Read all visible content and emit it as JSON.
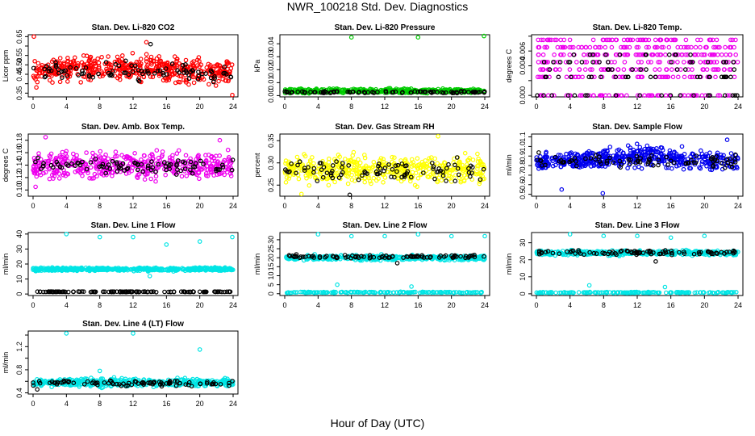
{
  "figure": {
    "title": "NWR_100218 Std. Dev. Diagnostics",
    "xlabel": "Hour of Day (UTC)"
  },
  "chart_data": [
    {
      "type": "scatter",
      "title": "Stan. Dev. Li-820 CO2",
      "ylabel": "Licor ppm",
      "xlim": [
        0,
        24
      ],
      "ylim": [
        0.33,
        0.66
      ],
      "xticks": [
        0,
        4,
        8,
        12,
        16,
        20,
        24
      ],
      "yticks": [
        0.35,
        0.4,
        0.45,
        0.5,
        0.55,
        0.6,
        0.65
      ],
      "ytick_labels": [
        "0.35",
        "",
        "0.45",
        "0.50",
        "0.55",
        "",
        "0.65"
      ],
      "grid": false,
      "series": [
        {
          "color": "#ff0000",
          "band": [
            [
              0,
              0.38,
              0.56
            ],
            [
              12,
              0.4,
              0.58
            ],
            [
              24,
              0.36,
              0.55
            ]
          ],
          "count": 480,
          "outliers": [
            [
              0.1,
              0.65
            ],
            [
              0.4,
              0.38
            ],
            [
              13.6,
              0.62
            ],
            [
              23.9,
              0.34
            ]
          ]
        },
        {
          "color": "#000000",
          "band": [
            [
              0,
              0.4,
              0.54
            ],
            [
              24,
              0.39,
              0.52
            ]
          ],
          "count": 90,
          "outliers": [
            [
              14.1,
              0.61
            ]
          ]
        }
      ]
    },
    {
      "type": "scatter",
      "title": "Stan. Dev. Li-820 Pressure",
      "ylabel": "kPa",
      "xlim": [
        0,
        24
      ],
      "ylim": [
        -0.001,
        0.047
      ],
      "xticks": [
        0,
        4,
        8,
        12,
        16,
        20,
        24
      ],
      "yticks": [
        0.0,
        0.01,
        0.02,
        0.03,
        0.04
      ],
      "ytick_labels": [
        "0.00",
        "0.01",
        "0.02",
        "0.03",
        "0.04"
      ],
      "grid": false,
      "series": [
        {
          "color": "#00cc00",
          "band": [
            [
              0,
              0.001,
              0.006
            ],
            [
              24,
              0.001,
              0.006
            ]
          ],
          "count": 450,
          "outliers": [
            [
              8.0,
              0.045
            ],
            [
              16.0,
              0.045
            ],
            [
              23.9,
              0.046
            ]
          ]
        },
        {
          "color": "#000000",
          "band": [
            [
              0,
              0.0015,
              0.004
            ],
            [
              24,
              0.0015,
              0.004
            ]
          ],
          "count": 90,
          "outliers": []
        }
      ]
    },
    {
      "type": "scatter",
      "title": "Stan. Dev. Li-820 Temp.",
      "ylabel": "degrees C",
      "xlim": [
        0,
        24
      ],
      "ylim": [
        -0.0002,
        0.0082
      ],
      "xticks": [
        0,
        4,
        8,
        12,
        16,
        20,
        24
      ],
      "yticks": [
        0.0,
        0.002,
        0.004,
        0.006,
        0.008
      ],
      "ytick_labels": [
        "0.000",
        "",
        "0.004",
        "0.006",
        ""
      ],
      "grid": false,
      "series": [
        {
          "color": "#ee00ee",
          "levels": [
            0.0,
            0.0025,
            0.0035,
            0.0045,
            0.0055,
            0.0065,
            0.0075
          ],
          "count": 420,
          "outliers": []
        },
        {
          "color": "#000000",
          "levels": [
            0.0,
            0.0025,
            0.0035,
            0.0045,
            0.0055
          ],
          "count": 80,
          "outliers": []
        }
      ]
    },
    {
      "type": "scatter",
      "title": "Stan. Dev. Amb. Box Temp.",
      "ylabel": "degrees C",
      "xlim": [
        0,
        24
      ],
      "ylim": [
        0.09,
        0.19
      ],
      "xticks": [
        0,
        4,
        8,
        12,
        16,
        20,
        24
      ],
      "yticks": [
        0.1,
        0.12,
        0.14,
        0.16,
        0.18
      ],
      "ytick_labels": [
        "0.10",
        "0.12",
        "0.14",
        "0.16",
        "0.18"
      ],
      "grid": false,
      "series": [
        {
          "color": "#ee00ee",
          "band": [
            [
              0,
              0.11,
              0.17
            ],
            [
              24,
              0.11,
              0.17
            ]
          ],
          "count": 460,
          "outliers": [
            [
              0.3,
              0.105
            ],
            [
              1.5,
              0.185
            ],
            [
              22.4,
              0.18
            ]
          ]
        },
        {
          "color": "#000000",
          "band": [
            [
              0,
              0.12,
              0.155
            ],
            [
              24,
              0.12,
              0.155
            ]
          ],
          "count": 90,
          "outliers": []
        }
      ]
    },
    {
      "type": "scatter",
      "title": "Stan. Dev. Gas Stream RH",
      "ylabel": "percent",
      "xlim": [
        0,
        24
      ],
      "ylim": [
        0.225,
        0.365
      ],
      "xticks": [
        0,
        4,
        8,
        12,
        16,
        20,
        24
      ],
      "yticks": [
        0.25,
        0.3,
        0.35
      ],
      "ytick_labels": [
        "0.25",
        "0.30",
        "0.35"
      ],
      "grid": false,
      "series": [
        {
          "color": "#ffff00",
          "band": [
            [
              0,
              0.24,
              0.33
            ],
            [
              24,
              0.24,
              0.33
            ]
          ],
          "count": 460,
          "outliers": [
            [
              18.4,
              0.36
            ],
            [
              2.0,
              0.23
            ]
          ]
        },
        {
          "color": "#000000",
          "band": [
            [
              0,
              0.245,
              0.315
            ],
            [
              24,
              0.245,
              0.32
            ]
          ],
          "count": 90,
          "outliers": [
            [
              7.8,
              0.228
            ]
          ]
        }
      ]
    },
    {
      "type": "scatter",
      "title": "Stan. Dev. Sample Flow",
      "ylabel": "ml/min",
      "xlim": [
        0,
        24
      ],
      "ylim": [
        0.48,
        1.13
      ],
      "xticks": [
        0,
        4,
        8,
        12,
        16,
        20,
        24
      ],
      "yticks": [
        0.5,
        0.6,
        0.7,
        0.8,
        0.9,
        1.0,
        1.1
      ],
      "ytick_labels": [
        "0.5",
        "0.6",
        "0.7",
        "0.8",
        "0.9",
        "1.0",
        "1.1"
      ],
      "grid": false,
      "series": [
        {
          "color": "#0000ee",
          "band": [
            [
              0,
              0.7,
              0.95
            ],
            [
              12,
              0.75,
              1.05
            ],
            [
              24,
              0.7,
              0.98
            ]
          ],
          "count": 520,
          "outliers": [
            [
              3.0,
              0.55
            ],
            [
              7.9,
              0.51
            ],
            [
              22.7,
              1.07
            ]
          ]
        },
        {
          "color": "#000000",
          "band": [
            [
              0,
              0.75,
              0.95
            ],
            [
              24,
              0.75,
              0.95
            ]
          ],
          "count": 80,
          "outliers": []
        }
      ]
    },
    {
      "type": "scatter",
      "title": "Stan. Dev. Line 1 Flow",
      "ylabel": "ml/min",
      "xlim": [
        0,
        24
      ],
      "ylim": [
        -1,
        41
      ],
      "xticks": [
        0,
        4,
        8,
        12,
        16,
        20,
        24
      ],
      "yticks": [
        0,
        10,
        20,
        30,
        40
      ],
      "ytick_labels": [
        "0",
        "10",
        "20",
        "30",
        "40"
      ],
      "grid": false,
      "series": [
        {
          "color": "#00e5e5",
          "band": [
            [
              0,
              15,
              18
            ],
            [
              24,
              15,
              18
            ]
          ],
          "count": 480,
          "outliers": [
            [
              4.0,
              40
            ],
            [
              8.0,
              38
            ],
            [
              12.0,
              38
            ],
            [
              16.0,
              33
            ],
            [
              20.0,
              35
            ],
            [
              23.9,
              38
            ],
            [
              14.0,
              12
            ]
          ]
        },
        {
          "color": "#000000",
          "band": [
            [
              0,
              1.2,
              1.8
            ],
            [
              24,
              1.2,
              1.8
            ]
          ],
          "count": 120,
          "outliers": []
        }
      ]
    },
    {
      "type": "scatter",
      "title": "Stan. Dev. Line 2 Flow",
      "ylabel": "ml/min",
      "xlim": [
        0,
        24
      ],
      "ylim": [
        -1,
        34
      ],
      "xticks": [
        0,
        4,
        8,
        12,
        16,
        20,
        24
      ],
      "yticks": [
        0,
        5,
        10,
        15,
        20,
        25,
        30
      ],
      "ytick_labels": [
        "0",
        "5",
        "10",
        "15",
        "20",
        "25",
        "30"
      ],
      "grid": false,
      "series": [
        {
          "color": "#00e5e5",
          "band": [
            [
              0,
              18,
              22
            ],
            [
              24,
              18,
              22
            ]
          ],
          "count": 420,
          "outliers": [
            [
              4.0,
              33
            ],
            [
              8.0,
              32
            ],
            [
              12.0,
              32
            ],
            [
              16.0,
              33
            ],
            [
              20.0,
              32
            ],
            [
              24.0,
              32
            ],
            [
              6.3,
              5
            ],
            [
              15.2,
              4
            ]
          ]
        },
        {
          "color": "#00e5e5",
          "band": [
            [
              0,
              0.3,
              1.2
            ],
            [
              24,
              0.3,
              1.2
            ]
          ],
          "count": 160,
          "outliers": []
        },
        {
          "color": "#000000",
          "band": [
            [
              0,
              19.5,
              22
            ],
            [
              24,
              19.5,
              22
            ]
          ],
          "count": 90,
          "outliers": [
            [
              13.5,
              17
            ]
          ]
        }
      ]
    },
    {
      "type": "scatter",
      "title": "Stan. Dev. Line 3 Flow",
      "ylabel": "ml/min",
      "xlim": [
        0,
        24
      ],
      "ylim": [
        -1,
        36
      ],
      "xticks": [
        0,
        4,
        8,
        12,
        16,
        20,
        24
      ],
      "yticks": [
        0,
        10,
        20,
        30
      ],
      "ytick_labels": [
        "0",
        "10",
        "20",
        "30"
      ],
      "grid": false,
      "series": [
        {
          "color": "#00e5e5",
          "band": [
            [
              0,
              22,
              26
            ],
            [
              24,
              22,
              26
            ]
          ],
          "count": 420,
          "outliers": [
            [
              4.0,
              35
            ],
            [
              8.0,
              34
            ],
            [
              12.0,
              34
            ],
            [
              16.0,
              33
            ],
            [
              20.0,
              34
            ],
            [
              6.3,
              5
            ],
            [
              15.3,
              4
            ]
          ]
        },
        {
          "color": "#00e5e5",
          "band": [
            [
              0,
              0.3,
              1.2
            ],
            [
              24,
              0.3,
              1.2
            ]
          ],
          "count": 160,
          "outliers": []
        },
        {
          "color": "#000000",
          "band": [
            [
              0,
              22.5,
              26
            ],
            [
              24,
              22.5,
              26
            ]
          ],
          "count": 90,
          "outliers": [
            [
              14.2,
              19
            ]
          ]
        }
      ]
    },
    {
      "type": "scatter",
      "title": "Stan. Dev. Line 4 (LT) Flow",
      "ylabel": "ml/min",
      "xlim": [
        0,
        24
      ],
      "ylim": [
        0.38,
        1.47
      ],
      "xticks": [
        0,
        4,
        8,
        12,
        16,
        20,
        24
      ],
      "yticks": [
        0.4,
        0.6,
        0.8,
        1.0,
        1.2,
        1.4
      ],
      "ytick_labels": [
        "0.4",
        "",
        "0.8",
        "",
        "1.2",
        ""
      ],
      "grid": false,
      "series": [
        {
          "color": "#00e5e5",
          "band": [
            [
              0,
              0.48,
              0.68
            ],
            [
              24,
              0.48,
              0.68
            ]
          ],
          "count": 460,
          "outliers": [
            [
              4.0,
              1.43
            ],
            [
              12.0,
              1.43
            ],
            [
              20.0,
              1.15
            ],
            [
              8.0,
              0.78
            ]
          ]
        },
        {
          "color": "#000000",
          "band": [
            [
              0,
              0.5,
              0.64
            ],
            [
              24,
              0.5,
              0.64
            ]
          ],
          "count": 90,
          "outliers": [
            [
              0.5,
              0.46
            ]
          ]
        }
      ]
    }
  ]
}
